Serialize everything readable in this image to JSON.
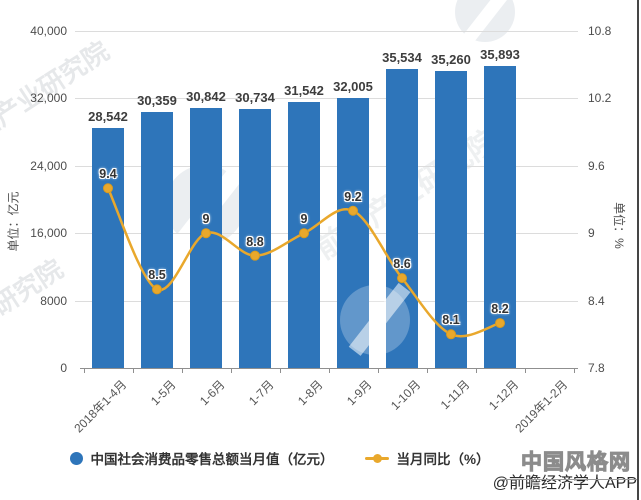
{
  "chart_data": {
    "type": "bar",
    "title": "",
    "categories": [
      "2018年1-4月",
      "1-5月",
      "1-6月",
      "1-7月",
      "1-8月",
      "1-9月",
      "1-10月",
      "1-11月",
      "1-12月",
      "2019年1-2月"
    ],
    "series": [
      {
        "name": "中国社会消费品零售总额当月值（亿元）",
        "type": "bar",
        "color": "#2e75ba",
        "values": [
          28542,
          30359,
          30842,
          30734,
          31542,
          32005,
          35534,
          35260,
          35893,
          null
        ],
        "labels": [
          "28,542",
          "30,359",
          "30,842",
          "30,734",
          "31,542",
          "32,005",
          "35,534",
          "35,260",
          "35,893"
        ]
      },
      {
        "name": "当月同比（%）",
        "type": "line",
        "color": "#e9a82c",
        "values": [
          9.4,
          8.5,
          9,
          8.8,
          9,
          9.2,
          8.6,
          8.1,
          8.2,
          null
        ],
        "labels": [
          "9.4",
          "8.5",
          "9",
          "8.8",
          "9",
          "9.2",
          "8.6",
          "8.1",
          "8.2"
        ]
      }
    ],
    "left_axis": {
      "title": "单位：亿元",
      "min": 0,
      "max": 40000,
      "ticks": [
        "40,000",
        "32,000",
        "24,000",
        "16,000",
        "8000",
        "0"
      ]
    },
    "right_axis": {
      "title": "单位：%",
      "min": 7.8,
      "max": 10.8,
      "ticks": [
        "10.8",
        "10.2",
        "9.6",
        "9",
        "8.4",
        "7.8"
      ]
    },
    "grid": true,
    "legend_position": "bottom"
  },
  "watermark": {
    "text": "前瞻产业研究院"
  },
  "branding": {
    "site": "中国风格网",
    "credit": "@前瞻经济学人APP"
  }
}
